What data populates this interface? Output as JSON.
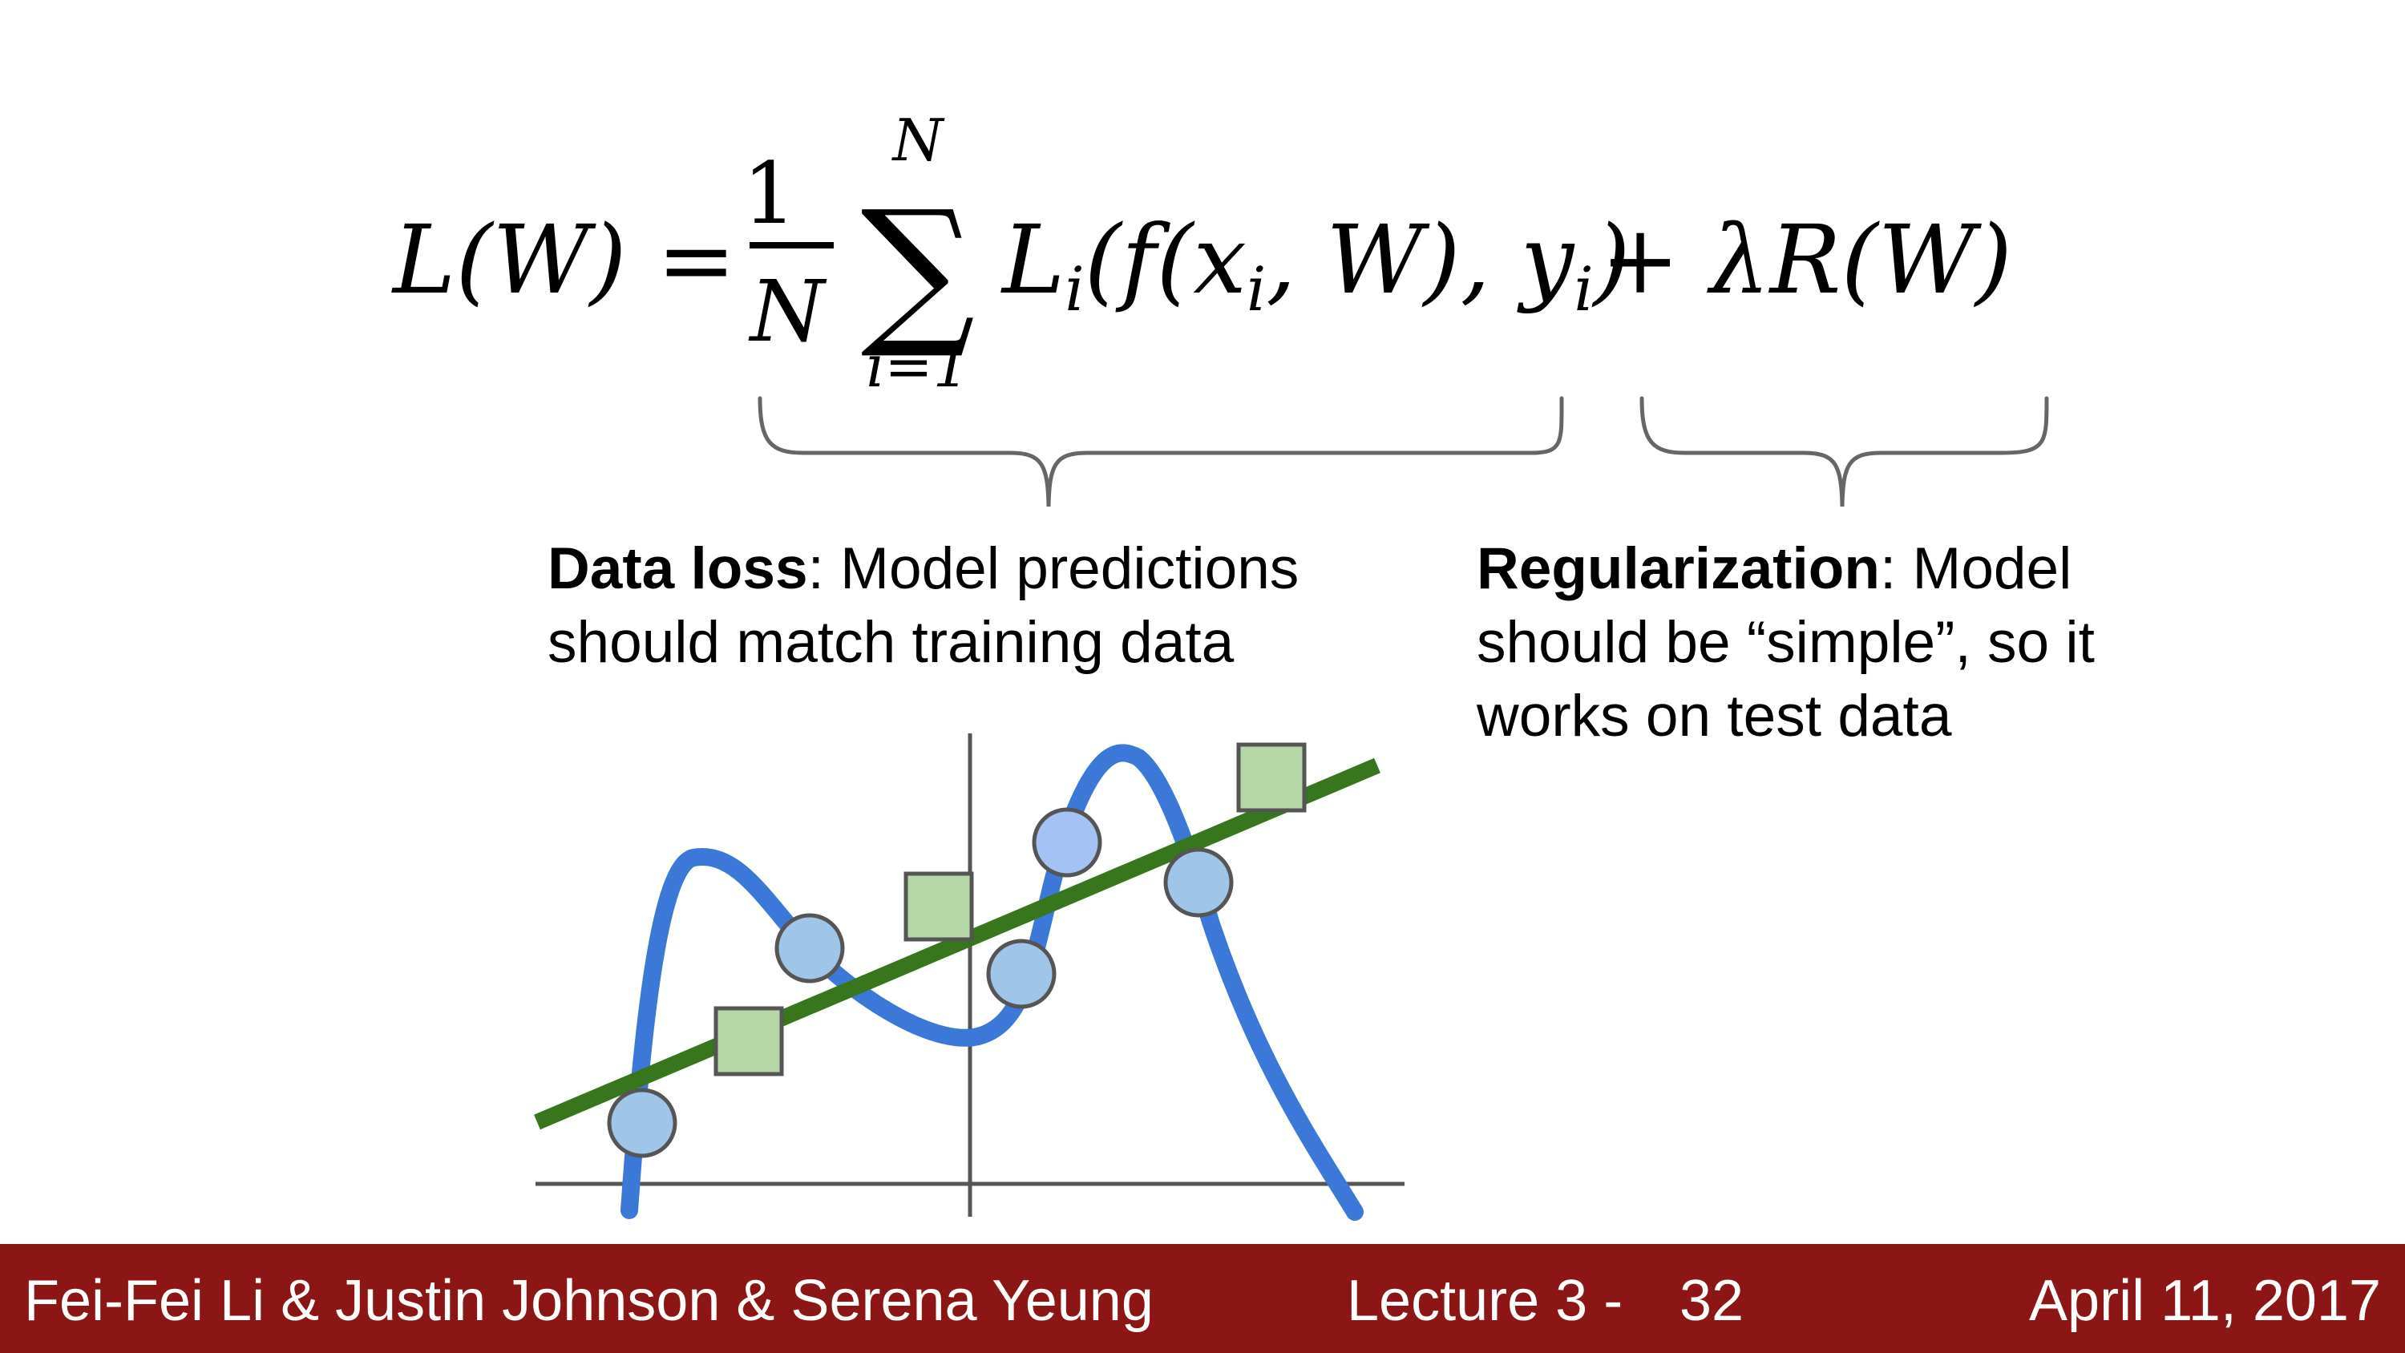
{
  "formula": {
    "lhs": "L(W) =",
    "frac_num": "1",
    "frac_den": "N",
    "sum_symbol": "∑",
    "sum_upper": "N",
    "sum_lower": "i=1",
    "body": "L",
    "body_sub": "i",
    "body_rest": "(f(x",
    "body_sub2": "i",
    "body_rest2": ", W), y",
    "body_sub3": "i",
    "body_end": ")",
    "reg": "+ λR(W)"
  },
  "annotations": {
    "data_loss": {
      "bold": "Data loss",
      "line1_rest": ": Model predictions",
      "line2": "should match training data"
    },
    "regularization": {
      "bold": "Regularization",
      "line1_rest": ": Model",
      "line2": "should be “simple”, so it",
      "line3": "works on test data"
    }
  },
  "colors": {
    "footer_bg": "#8c1515",
    "curve": "#3b78d8",
    "line": "#38761d",
    "circle_fill": "#9fc5e8",
    "circle_fill_alt": "#a4c2f4",
    "square_fill": "#b6d7a8",
    "marker_stroke": "#555555",
    "axis": "#555555"
  },
  "footer": {
    "authors": "Fei-Fei Li & Justin Johnson & Serena Yeung",
    "lecture": "Lecture 3 -",
    "slide_number": "32",
    "date": "April 11, 2017"
  }
}
